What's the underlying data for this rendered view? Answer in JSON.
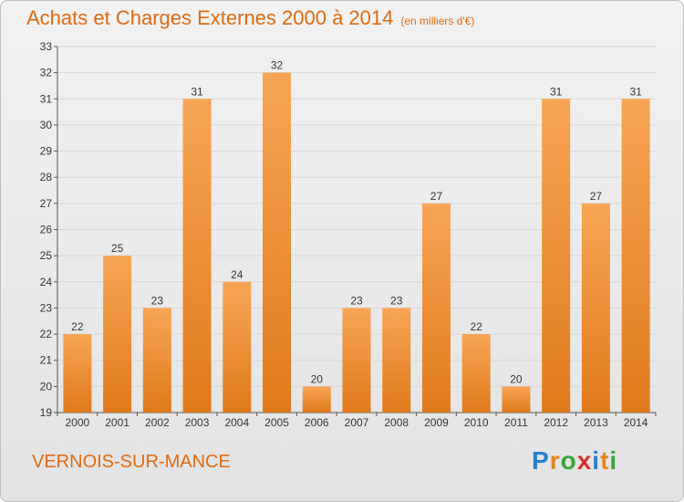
{
  "header": {
    "title": "Achats et Charges Externes 2000 à 2014",
    "subtitle": "(en milliers d'€)"
  },
  "footer": {
    "place": "VERNOIS-SUR-MANCE",
    "logo": "Proxiti"
  },
  "colors": {
    "bar_top": "#f7a555",
    "bar_bottom": "#e07a1c",
    "text_accent": "#e06a10",
    "grid": "#d8d8d8"
  },
  "chart_data": {
    "type": "bar",
    "title": "Achats et Charges Externes 2000 à 2014",
    "subtitle": "(en milliers d'€)",
    "categories": [
      "2000",
      "2001",
      "2002",
      "2003",
      "2004",
      "2005",
      "2006",
      "2007",
      "2008",
      "2009",
      "2010",
      "2011",
      "2012",
      "2013",
      "2014"
    ],
    "values": [
      22,
      25,
      23,
      31,
      24,
      32,
      20,
      23,
      23,
      27,
      22,
      20,
      31,
      27,
      31
    ],
    "ylim": [
      19,
      33
    ],
    "yticks": [
      19,
      20,
      21,
      22,
      23,
      24,
      25,
      26,
      27,
      28,
      29,
      30,
      31,
      32,
      33
    ],
    "grid": true,
    "data_labels": true
  }
}
